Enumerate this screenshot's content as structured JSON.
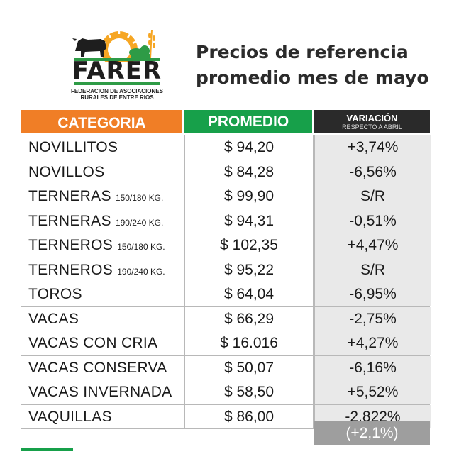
{
  "logo": {
    "name": "FARER",
    "subtitle_line1": "FEDERACION DE ASOCIACIONES",
    "subtitle_line2": "RURALES DE ENTRE RIOS"
  },
  "title": {
    "line1": "Precios de referencia",
    "line2": "promedio mes de mayo"
  },
  "headers": {
    "category": "CATEGORIA",
    "average": "PROMEDIO",
    "variation": "VARIACIÓN",
    "variation_sub": "RESPECTO A ABRIL"
  },
  "rows": [
    {
      "category": "NOVILLITOS",
      "detail": "",
      "average": "$ 94,20",
      "variation": "+3,74%"
    },
    {
      "category": "NOVILLOS",
      "detail": "",
      "average": "$ 84,28",
      "variation": "-6,56%"
    },
    {
      "category": "TERNERAS",
      "detail": "150/180 KG.",
      "average": "$ 99,90",
      "variation": "S/R"
    },
    {
      "category": "TERNERAS",
      "detail": "190/240 KG.",
      "average": "$ 94,31",
      "variation": "-0,51%"
    },
    {
      "category": "TERNEROS",
      "detail": "150/180 KG.",
      "average": "$ 102,35",
      "variation": "+4,47%"
    },
    {
      "category": "TERNEROS",
      "detail": "190/240 KG.",
      "average": "$ 95,22",
      "variation": "S/R"
    },
    {
      "category": "TOROS",
      "detail": "",
      "average": "$ 64,04",
      "variation": "-6,95%"
    },
    {
      "category": "VACAS",
      "detail": "",
      "average": "$ 66,29",
      "variation": "-2,75%"
    },
    {
      "category": "VACAS CON CRIA",
      "detail": "",
      "average": "$ 16.016",
      "variation": "+4,27%"
    },
    {
      "category": "VACAS CONSERVA",
      "detail": "",
      "average": "$ 50,07",
      "variation": "-6,16%"
    },
    {
      "category": "VACAS INVERNADA",
      "detail": "",
      "average": "$ 58,50",
      "variation": "+5,52%"
    },
    {
      "category": "VAQUILLAS",
      "detail": "",
      "average": "$ 86,00",
      "variation": "-2,822%"
    }
  ],
  "total_variation": "(+2,1%)",
  "colors": {
    "orange": "#f07e26",
    "green": "#17a04a",
    "dark": "#2a2a2a",
    "variation_bg": "#e9e9e9",
    "total_bg": "#9e9e9e"
  }
}
